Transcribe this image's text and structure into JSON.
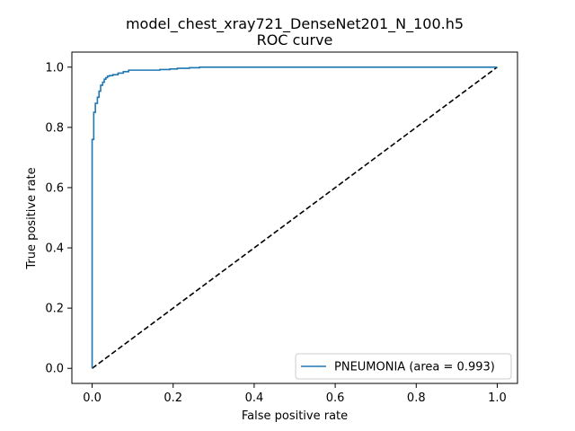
{
  "chart_data": {
    "type": "line",
    "title": "model_chest_xray721_DenseNet201_N_100.h5",
    "subtitle": "ROC curve",
    "xlabel": "False positive rate",
    "ylabel": "True positive rate",
    "xlim": [
      -0.05,
      1.05
    ],
    "ylim": [
      -0.05,
      1.05
    ],
    "xticks": [
      0.0,
      0.2,
      0.4,
      0.6,
      0.8,
      1.0
    ],
    "yticks": [
      0.0,
      0.2,
      0.4,
      0.6,
      0.8,
      1.0
    ],
    "xtick_labels": [
      "0.0",
      "0.2",
      "0.4",
      "0.6",
      "0.8",
      "1.0"
    ],
    "ytick_labels": [
      "0.0",
      "0.2",
      "0.4",
      "0.6",
      "0.8",
      "1.0"
    ],
    "grid": false,
    "legend_position": "lower-right",
    "series": [
      {
        "name": "PNEUMONIA (area = 0.993)",
        "color": "#1f77b4",
        "style": "solid",
        "x": [
          0.0,
          0.0,
          0.004,
          0.004,
          0.008,
          0.008,
          0.013,
          0.013,
          0.017,
          0.017,
          0.021,
          0.021,
          0.026,
          0.026,
          0.03,
          0.03,
          0.034,
          0.034,
          0.038,
          0.038,
          0.043,
          0.043,
          0.051,
          0.051,
          0.064,
          0.064,
          0.077,
          0.077,
          0.09,
          0.09,
          0.167,
          0.167,
          0.192,
          0.192,
          0.21,
          0.21,
          0.24,
          0.24,
          0.265,
          0.265,
          1.0
        ],
        "y": [
          0.0,
          0.76,
          0.76,
          0.85,
          0.85,
          0.88,
          0.88,
          0.9,
          0.9,
          0.92,
          0.92,
          0.94,
          0.94,
          0.95,
          0.95,
          0.96,
          0.96,
          0.965,
          0.965,
          0.97,
          0.97,
          0.972,
          0.972,
          0.975,
          0.975,
          0.98,
          0.98,
          0.985,
          0.985,
          0.99,
          0.99,
          0.992,
          0.992,
          0.994,
          0.994,
          0.996,
          0.996,
          0.998,
          0.998,
          1.0,
          1.0
        ]
      },
      {
        "name": "",
        "color": "#000000",
        "style": "dashed",
        "x": [
          0.0,
          1.0
        ],
        "y": [
          0.0,
          1.0
        ]
      }
    ]
  }
}
